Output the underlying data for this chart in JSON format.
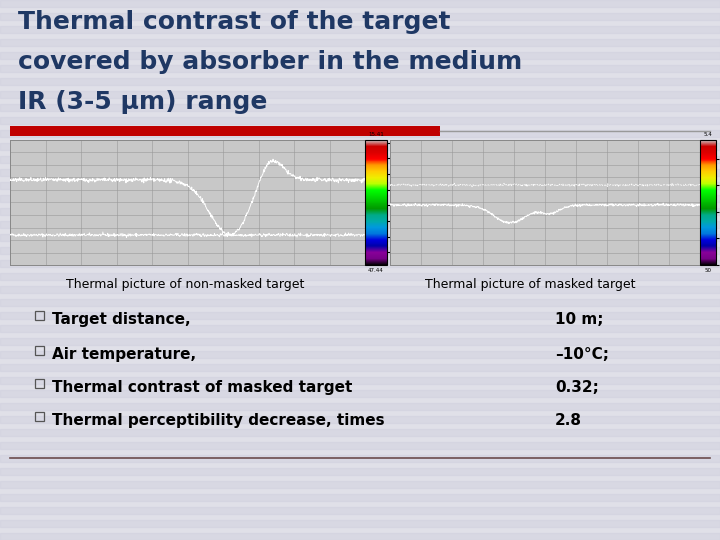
{
  "title_line1": "Thermal contrast of the target",
  "title_line2": "covered by absorber in the medium",
  "title_line3": "IR (3-5 μm) range",
  "title_color": "#1F3864",
  "title_fontsize": 18,
  "red_bar_color": "#C00000",
  "background_color": "#E0E0E8",
  "caption_left": "Thermal picture of non-masked target",
  "caption_right": "Thermal picture of masked target",
  "caption_fontsize": 9,
  "bullet_items": [
    "Target distance,",
    "Air temperature,",
    "Thermal contrast of masked target",
    "Thermal perceptibility decrease, times"
  ],
  "bullet_values": [
    "10 m;",
    "–10°C;",
    "0.32;",
    "2.8"
  ],
  "bullet_fontsize": 11,
  "bottom_line_color": "#6B4C4C",
  "image_bg": "#C8C8C8",
  "image_border": "#888888",
  "stripe_color": "#CCCCDD"
}
